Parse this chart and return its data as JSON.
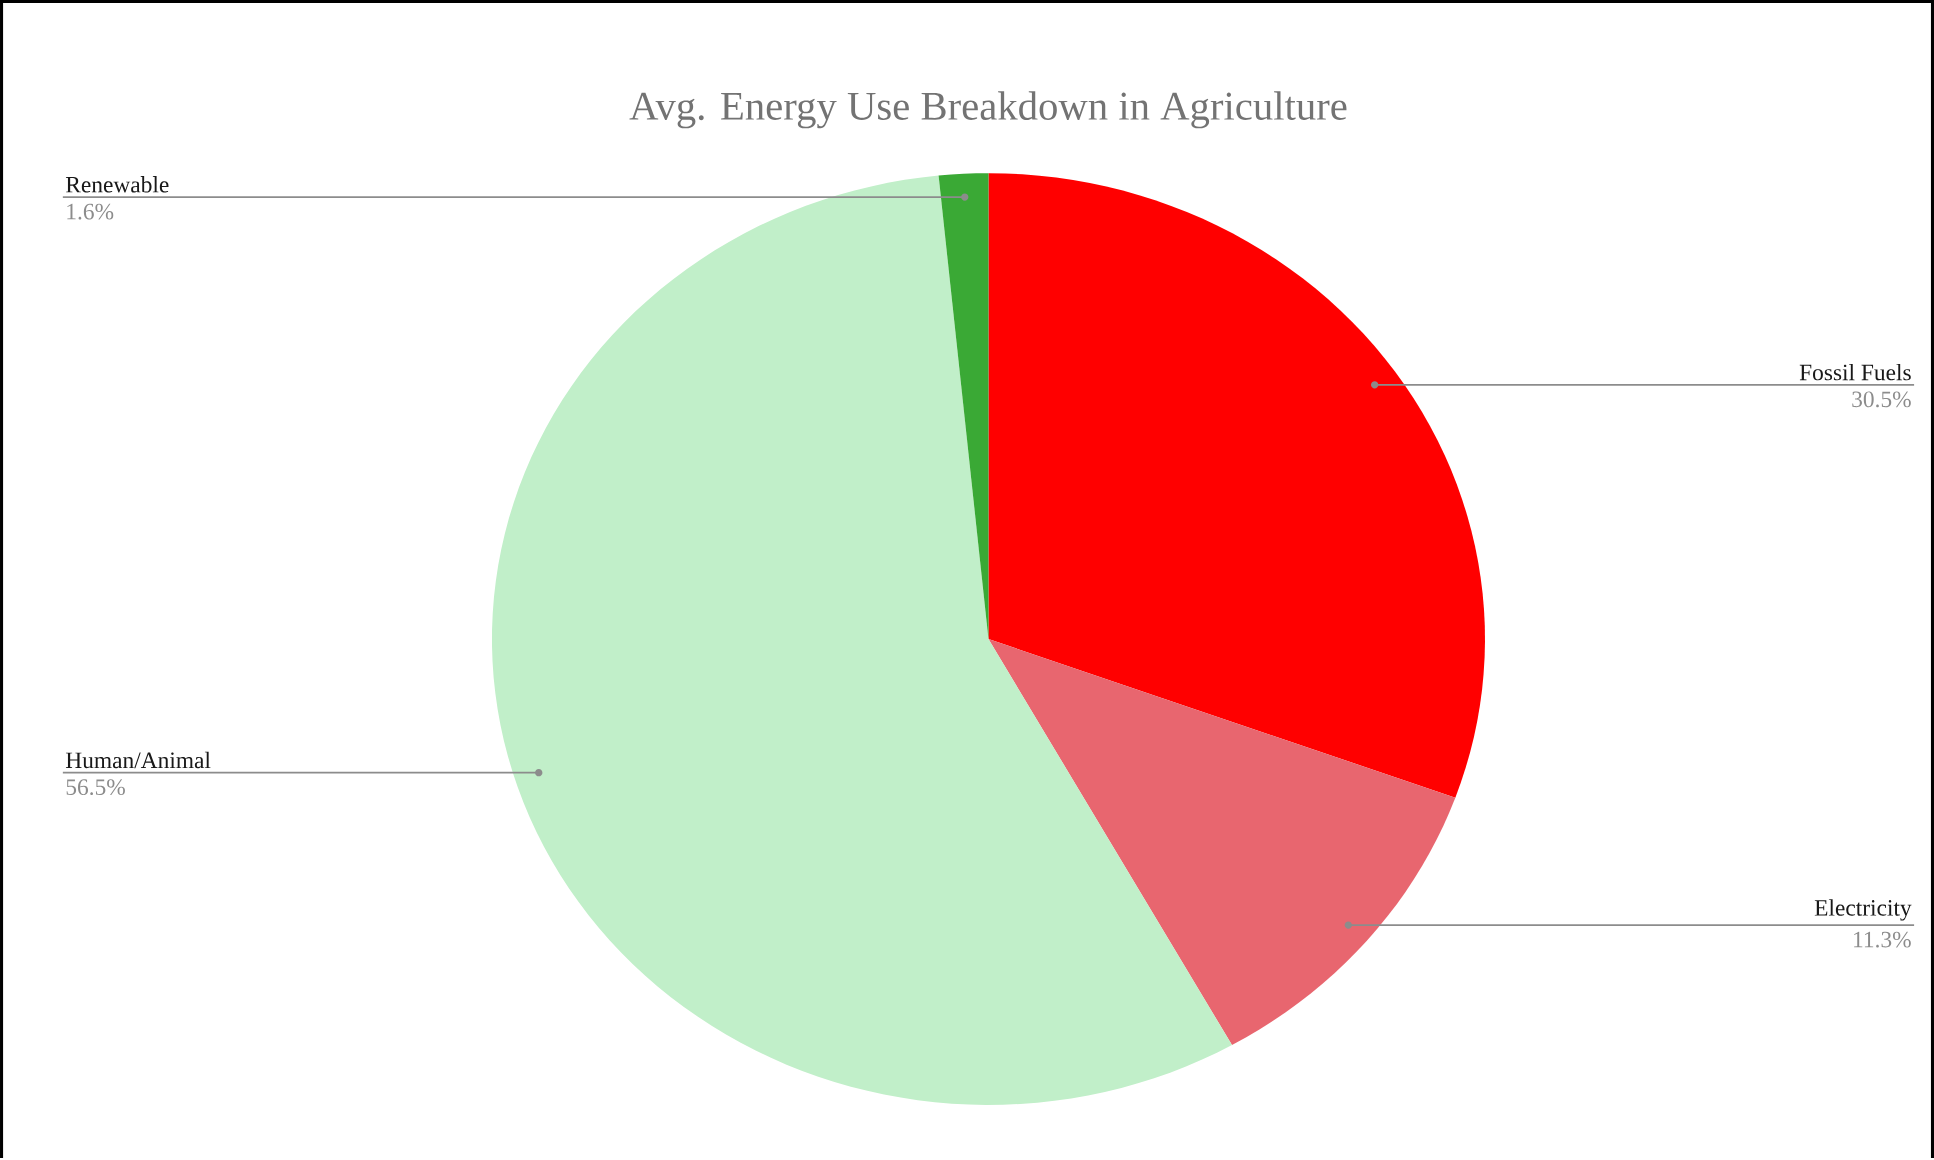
{
  "chart_data": {
    "type": "pie",
    "title": "Avg. Energy Use Breakdown in Agriculture",
    "categories": [
      "Fossil Fuels",
      "Electricity",
      "Human/Animal",
      "Renewable"
    ],
    "values": [
      30.5,
      11.3,
      56.5,
      1.6
    ],
    "value_labels": [
      "30.5%",
      "11.3%",
      "56.5%",
      "1.6%"
    ],
    "colors": [
      "#ff0000",
      "#e8666f",
      "#c1efc9",
      "#3aa935"
    ],
    "legend": false
  }
}
